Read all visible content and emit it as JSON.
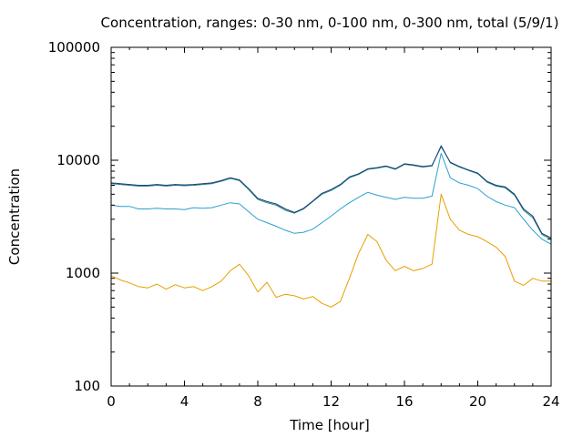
{
  "chart_data": {
    "type": "line",
    "title": "Concentration, ranges: 0-30 nm, 0-100 nm, 0-300 nm, total (5/9/1)",
    "xlabel": "Time [hour]",
    "ylabel": "Concentration",
    "xlim": [
      0,
      24
    ],
    "ylim": [
      100,
      100000
    ],
    "yscale": "log",
    "grid": false,
    "x_ticks": [
      0,
      4,
      8,
      12,
      16,
      20,
      24
    ],
    "x_tick_labels": [
      "0",
      "4",
      "8",
      "12",
      "16",
      "20",
      "24"
    ],
    "y_ticks": [
      100,
      1000,
      10000,
      100000
    ],
    "y_tick_labels": [
      "100",
      "1000",
      "10000",
      "100000"
    ],
    "x": [
      0,
      0.5,
      1,
      1.5,
      2,
      2.5,
      3,
      3.5,
      4,
      4.5,
      5,
      5.5,
      6,
      6.5,
      7,
      7.5,
      8,
      8.5,
      9,
      9.5,
      10,
      10.5,
      11,
      11.5,
      12,
      12.5,
      13,
      13.5,
      14,
      14.5,
      15,
      15.5,
      16,
      16.5,
      17,
      17.5,
      18,
      18.5,
      19,
      19.5,
      20,
      20.5,
      21,
      21.5,
      22,
      22.5,
      23,
      23.5,
      24
    ],
    "series": [
      {
        "color": "#e6a000",
        "values": [
          950,
          870,
          820,
          760,
          740,
          800,
          720,
          790,
          740,
          760,
          700,
          760,
          850,
          1050,
          1200,
          950,
          680,
          830,
          610,
          650,
          630,
          590,
          620,
          540,
          500,
          560,
          900,
          1500,
          2200,
          1900,
          1300,
          1050,
          1150,
          1050,
          1100,
          1200,
          5000,
          3000,
          2400,
          2200,
          2100,
          1900,
          1700,
          1400,
          850,
          780,
          900,
          850,
          850
        ]
      },
      {
        "color": "#2a9fd0",
        "values": [
          4000,
          3900,
          3900,
          3700,
          3700,
          3750,
          3700,
          3700,
          3650,
          3800,
          3750,
          3800,
          4000,
          4200,
          4100,
          3500,
          3000,
          2800,
          2600,
          2400,
          2250,
          2300,
          2450,
          2800,
          3200,
          3700,
          4200,
          4700,
          5200,
          4900,
          4700,
          4500,
          4700,
          4600,
          4600,
          4800,
          11500,
          7000,
          6300,
          6000,
          5600,
          4800,
          4300,
          4000,
          3800,
          3000,
          2400,
          2000,
          1800
        ]
      },
      {
        "color": "#1a8a80",
        "values": [
          6200,
          6100,
          6000,
          5900,
          5900,
          6000,
          5900,
          6000,
          5950,
          6000,
          6100,
          6200,
          6500,
          6900,
          6600,
          5500,
          4500,
          4200,
          4000,
          3600,
          3400,
          3700,
          4300,
          5000,
          5400,
          6000,
          7000,
          7500,
          8300,
          8500,
          8800,
          8300,
          9200,
          9000,
          8700,
          8900,
          13500,
          9500,
          8700,
          8100,
          7600,
          6400,
          5900,
          5700,
          4900,
          3600,
          3100,
          2200,
          2000
        ]
      },
      {
        "color": "#1e3a7a",
        "values": [
          6300,
          6200,
          6100,
          6000,
          6000,
          6100,
          6000,
          6100,
          6050,
          6100,
          6200,
          6300,
          6600,
          7000,
          6700,
          5600,
          4600,
          4300,
          4100,
          3700,
          3450,
          3750,
          4350,
          5100,
          5500,
          6100,
          7100,
          7600,
          8400,
          8600,
          8900,
          8400,
          9300,
          9100,
          8800,
          9000,
          13200,
          9600,
          8800,
          8200,
          7700,
          6500,
          6000,
          5800,
          5000,
          3700,
          3200,
          2250,
          2050
        ]
      }
    ]
  }
}
